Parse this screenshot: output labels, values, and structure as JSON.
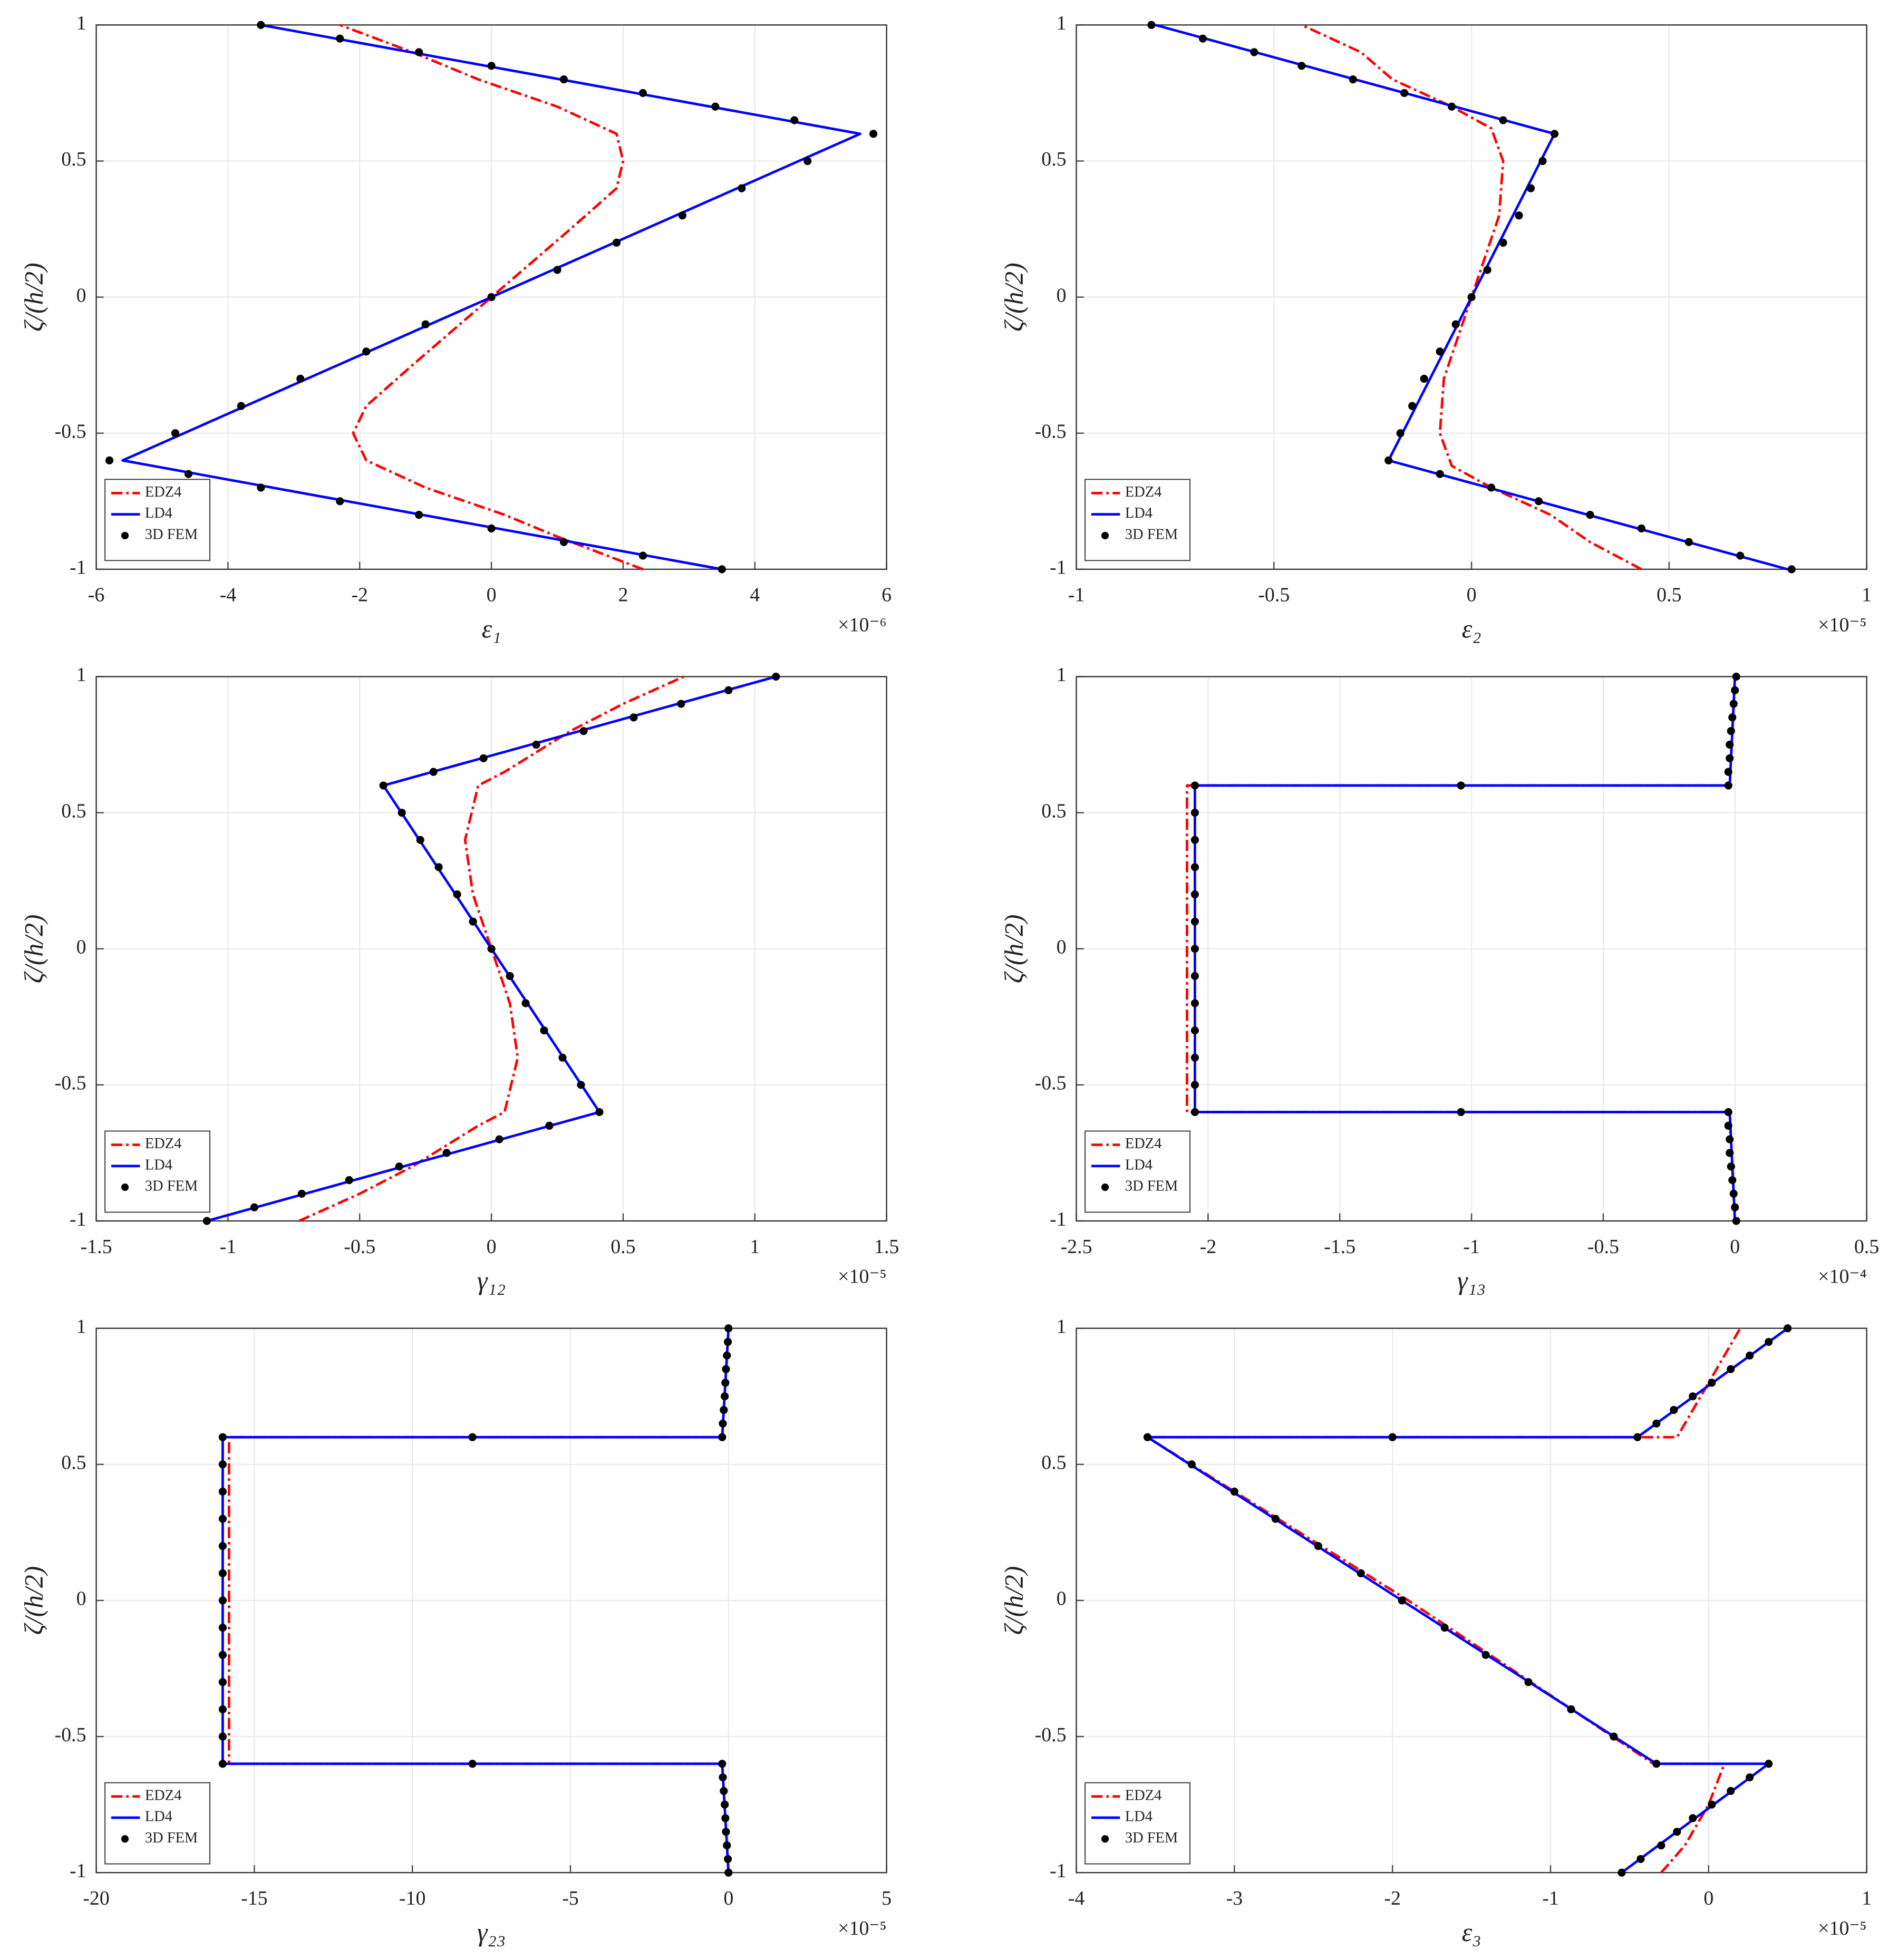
{
  "chart_data": [
    {
      "type": "line",
      "xlabel": "ε₁",
      "ylabel": "ζ/(h/2)",
      "x_multiplier": "×10⁻⁶",
      "xlim": [
        -6,
        6
      ],
      "ylim": [
        -1,
        1
      ],
      "xticks": [
        -6,
        -4,
        -2,
        0,
        2,
        4,
        6
      ],
      "yticks": [
        -1,
        -0.5,
        0,
        0.5,
        1
      ],
      "grid": true,
      "legend": "lower left",
      "series": [
        {
          "name": "EDZ4",
          "color": "#ff0000",
          "style": "dashdot",
          "x": [
            2.3,
            1.0,
            0.2,
            -1,
            -1.9,
            -2.1,
            -1.9,
            -1.2,
            0,
            1.2,
            1.9,
            2.0,
            1.9,
            1,
            -0.2,
            -0.7,
            -1.2,
            -2.3
          ],
          "y": [
            -1,
            -0.88,
            -0.8,
            -0.7,
            -0.6,
            -0.5,
            -0.4,
            -0.25,
            0,
            0.25,
            0.4,
            0.5,
            0.6,
            0.7,
            0.8,
            0.85,
            0.9,
            1
          ]
        },
        {
          "name": "LD4",
          "color": "#0000ff",
          "style": "solid",
          "x": [
            3.5,
            -5.6,
            5.6,
            -3.5
          ],
          "y": [
            -1,
            -0.6,
            0.6,
            1
          ]
        },
        {
          "name": "3D FEM",
          "color": "#000000",
          "style": "markers",
          "x": [
            3.5,
            2.3,
            1.1,
            0,
            -1.1,
            -2.3,
            -3.5,
            -4.6,
            -5.8,
            -4.8,
            -3.8,
            -2.9,
            -1.9,
            -1,
            0,
            1,
            1.9,
            2.9,
            3.8,
            4.8,
            5.8,
            4.6,
            3.4,
            2.3,
            1.1,
            0,
            -1.1,
            -2.3,
            -3.5
          ],
          "y": [
            -1,
            -0.95,
            -0.9,
            -0.85,
            -0.8,
            -0.75,
            -0.7,
            -0.65,
            -0.6,
            -0.5,
            -0.4,
            -0.3,
            -0.2,
            -0.1,
            0,
            0.1,
            0.2,
            0.3,
            0.4,
            0.5,
            0.6,
            0.65,
            0.7,
            0.75,
            0.8,
            0.85,
            0.9,
            0.95,
            1
          ]
        }
      ]
    },
    {
      "type": "line",
      "xlabel": "ε₂",
      "ylabel": "ζ/(h/2)",
      "x_multiplier": "×10⁻⁵",
      "xlim": [
        -1,
        1
      ],
      "ylim": [
        -1,
        1
      ],
      "xticks": [
        -1,
        -0.5,
        0,
        0.5,
        1
      ],
      "yticks": [
        -1,
        -0.5,
        0,
        0.5,
        1
      ],
      "grid": true,
      "legend": "lower left",
      "series": [
        {
          "name": "EDZ4",
          "color": "#ff0000",
          "style": "dashdot",
          "x": [
            0.43,
            0.3,
            0.2,
            0.05,
            -0.05,
            -0.08,
            -0.07,
            0,
            0.07,
            0.08,
            0.05,
            -0.05,
            -0.2,
            -0.28,
            -0.43
          ],
          "y": [
            -1,
            -0.9,
            -0.8,
            -0.7,
            -0.62,
            -0.5,
            -0.3,
            0,
            0.3,
            0.5,
            0.62,
            0.7,
            0.8,
            0.9,
            1
          ]
        },
        {
          "name": "LD4",
          "color": "#0000ff",
          "style": "solid",
          "x": [
            0.8,
            -0.21,
            0.21,
            -0.8
          ],
          "y": [
            -1,
            -0.6,
            0.6,
            1
          ]
        },
        {
          "name": "3D FEM",
          "color": "#000000",
          "style": "markers",
          "x": [
            0.81,
            0.68,
            0.55,
            0.43,
            0.3,
            0.17,
            0.05,
            -0.08,
            -0.21,
            -0.18,
            -0.15,
            -0.12,
            -0.08,
            -0.04,
            0,
            0.04,
            0.08,
            0.12,
            0.15,
            0.18,
            0.21,
            0.08,
            -0.05,
            -0.17,
            -0.3,
            -0.43,
            -0.55,
            -0.68,
            -0.81
          ],
          "y": [
            -1,
            -0.95,
            -0.9,
            -0.85,
            -0.8,
            -0.75,
            -0.7,
            -0.65,
            -0.6,
            -0.5,
            -0.4,
            -0.3,
            -0.2,
            -0.1,
            0,
            0.1,
            0.2,
            0.3,
            0.4,
            0.5,
            0.6,
            0.65,
            0.7,
            0.75,
            0.8,
            0.85,
            0.9,
            0.95,
            1
          ]
        }
      ]
    },
    {
      "type": "line",
      "xlabel": "γ₁₂",
      "ylabel": "ζ/(h/2)",
      "x_multiplier": "×10⁻⁵",
      "xlim": [
        -1.5,
        1.5
      ],
      "ylim": [
        -1,
        1
      ],
      "xticks": [
        -1.5,
        -1,
        -0.5,
        0,
        0.5,
        1,
        1.5
      ],
      "yticks": [
        -1,
        -0.5,
        0,
        0.5,
        1
      ],
      "grid": true,
      "legend": "lower left",
      "series": [
        {
          "name": "EDZ4",
          "color": "#ff0000",
          "style": "dashdot",
          "x": [
            -0.73,
            -0.5,
            -0.3,
            -0.05,
            0.05,
            0.1,
            0.07,
            0,
            -0.07,
            -0.1,
            -0.05,
            0.05,
            0.3,
            0.5,
            0.73
          ],
          "y": [
            -1,
            -0.9,
            -0.8,
            -0.65,
            -0.6,
            -0.4,
            -0.2,
            0,
            0.2,
            0.4,
            0.6,
            0.65,
            0.8,
            0.9,
            1
          ]
        },
        {
          "name": "LD4",
          "color": "#0000ff",
          "style": "solid",
          "x": [
            -1.08,
            0.41,
            -0.41,
            1.08
          ],
          "y": [
            -1,
            -0.6,
            0.6,
            1
          ]
        },
        {
          "name": "3D FEM",
          "color": "#000000",
          "style": "markers",
          "x": [
            -1.08,
            -0.9,
            -0.72,
            -0.54,
            -0.35,
            -0.17,
            0.03,
            0.22,
            0.41,
            0.34,
            0.27,
            0.2,
            0.13,
            0.07,
            0,
            -0.07,
            -0.13,
            -0.2,
            -0.27,
            -0.34,
            -0.41,
            -0.22,
            -0.03,
            0.17,
            0.35,
            0.54,
            0.72,
            0.9,
            1.08
          ],
          "y": [
            -1,
            -0.95,
            -0.9,
            -0.85,
            -0.8,
            -0.75,
            -0.7,
            -0.65,
            -0.6,
            -0.5,
            -0.4,
            -0.3,
            -0.2,
            -0.1,
            0,
            0.1,
            0.2,
            0.3,
            0.4,
            0.5,
            0.6,
            0.65,
            0.7,
            0.75,
            0.8,
            0.85,
            0.9,
            0.95,
            1
          ]
        }
      ]
    },
    {
      "type": "line",
      "xlabel": "γ₁₃",
      "ylabel": "ζ/(h/2)",
      "x_multiplier": "×10⁻⁴",
      "xlim": [
        -2.5,
        0.5
      ],
      "ylim": [
        -1,
        1
      ],
      "xticks": [
        -2.5,
        -2,
        -1.5,
        -1,
        -0.5,
        0,
        0.5
      ],
      "yticks": [
        -1,
        -0.5,
        0,
        0.5,
        1
      ],
      "grid": true,
      "legend": "lower left",
      "series": [
        {
          "name": "EDZ4",
          "color": "#ff0000",
          "style": "dashdot",
          "x": [
            0,
            -0.02,
            -2.08,
            -2.08,
            -0.02,
            0
          ],
          "y": [
            -1,
            -0.6,
            -0.6,
            0.6,
            0.6,
            1
          ]
        },
        {
          "name": "LD4",
          "color": "#0000ff",
          "style": "solid",
          "x": [
            0,
            -0.02,
            -2.05,
            -2.05,
            -0.02,
            0
          ],
          "y": [
            -1,
            -0.6,
            -0.6,
            0.6,
            0.6,
            1
          ]
        },
        {
          "name": "3D FEM",
          "color": "#000000",
          "style": "markers",
          "x": [
            0.005,
            0,
            -0.005,
            -0.01,
            -0.015,
            -0.02,
            -0.02,
            -0.025,
            -0.025,
            -1.04,
            -2.05,
            -2.05,
            -2.05,
            -2.05,
            -2.05,
            -2.05,
            -2.05,
            -2.05,
            -2.05,
            -2.05,
            -2.05,
            -2.05,
            -2.05,
            -1.04,
            -0.025,
            -0.025,
            -0.02,
            -0.02,
            -0.015,
            -0.01,
            -0.005,
            0,
            0.005
          ],
          "y": [
            -1,
            -0.95,
            -0.9,
            -0.85,
            -0.8,
            -0.75,
            -0.7,
            -0.65,
            -0.6,
            -0.6,
            -0.6,
            -0.5,
            -0.4,
            -0.3,
            -0.2,
            -0.1,
            0,
            0.1,
            0.2,
            0.3,
            0.4,
            0.5,
            0.6,
            0.6,
            0.6,
            0.65,
            0.7,
            0.75,
            0.8,
            0.85,
            0.9,
            0.95,
            1
          ]
        }
      ]
    },
    {
      "type": "line",
      "xlabel": "γ₂₃",
      "ylabel": "ζ/(h/2)",
      "x_multiplier": "×10⁻⁵",
      "xlim": [
        -20,
        5
      ],
      "ylim": [
        -1,
        1
      ],
      "xticks": [
        -20,
        -15,
        -10,
        -5,
        0,
        5
      ],
      "yticks": [
        -1,
        -0.5,
        0,
        0.5,
        1
      ],
      "grid": true,
      "legend": "lower left",
      "series": [
        {
          "name": "EDZ4",
          "color": "#ff0000",
          "style": "dashdot",
          "x": [
            0,
            -0.2,
            -15.8,
            -15.8,
            -0.2,
            0
          ],
          "y": [
            -1,
            -0.6,
            -0.6,
            0.6,
            0.6,
            1
          ]
        },
        {
          "name": "LD4",
          "color": "#0000ff",
          "style": "solid",
          "x": [
            0,
            -0.2,
            -16,
            -16,
            -0.2,
            0
          ],
          "y": [
            -1,
            -0.6,
            -0.6,
            0.6,
            0.6,
            1
          ]
        },
        {
          "name": "3D FEM",
          "color": "#000000",
          "style": "markers",
          "x": [
            0,
            -0.02,
            -0.05,
            -0.08,
            -0.1,
            -0.12,
            -0.15,
            -0.18,
            -0.2,
            -8.1,
            -16,
            -16,
            -16,
            -16,
            -16,
            -16,
            -16,
            -16,
            -16,
            -16,
            -16,
            -16,
            -16,
            -8.1,
            -0.2,
            -0.18,
            -0.15,
            -0.12,
            -0.1,
            -0.08,
            -0.05,
            -0.02,
            0
          ],
          "y": [
            -1,
            -0.95,
            -0.9,
            -0.85,
            -0.8,
            -0.75,
            -0.7,
            -0.65,
            -0.6,
            -0.6,
            -0.6,
            -0.5,
            -0.4,
            -0.3,
            -0.2,
            -0.1,
            0,
            0.1,
            0.2,
            0.3,
            0.4,
            0.5,
            0.6,
            0.6,
            0.6,
            0.65,
            0.7,
            0.75,
            0.8,
            0.85,
            0.9,
            0.95,
            1
          ]
        }
      ]
    },
    {
      "type": "line",
      "xlabel": "ε₃",
      "ylabel": "ζ/(h/2)",
      "x_multiplier": "×10⁻⁵",
      "xlim": [
        -4,
        1
      ],
      "ylim": [
        -1,
        1
      ],
      "xticks": [
        -4,
        -3,
        -2,
        -1,
        0,
        1
      ],
      "yticks": [
        -1,
        -0.5,
        0,
        0.5,
        1
      ],
      "grid": true,
      "legend": "lower left",
      "series": [
        {
          "name": "EDZ4",
          "color": "#ff0000",
          "style": "dashdot",
          "x": [
            -0.3,
            -0.15,
            0,
            0.1,
            -0.35,
            -1.9,
            -3.55,
            -0.2,
            -0.1,
            0.05,
            0.2
          ],
          "y": [
            -1,
            -0.9,
            -0.75,
            -0.6,
            -0.6,
            0,
            0.6,
            0.6,
            0.7,
            0.85,
            1
          ]
        },
        {
          "name": "LD4",
          "color": "#0000ff",
          "style": "solid",
          "x": [
            -0.55,
            0.38,
            -0.33,
            -3.55,
            -0.45,
            0.5
          ],
          "y": [
            -1,
            -0.6,
            -0.6,
            0.6,
            0.6,
            1
          ]
        },
        {
          "name": "3D FEM",
          "color": "#000000",
          "style": "markers",
          "x": [
            -0.55,
            -0.43,
            -0.3,
            -0.2,
            -0.1,
            0.02,
            0.14,
            0.26,
            0.38,
            -0.33,
            -0.6,
            -0.87,
            -1.14,
            -1.41,
            -1.67,
            -1.94,
            -2.2,
            -2.47,
            -2.74,
            -3,
            -3.27,
            -3.55,
            -2.0,
            -0.45,
            -0.33,
            -0.22,
            -0.1,
            0.02,
            0.14,
            0.26,
            0.38,
            0.5
          ],
          "y": [
            -1,
            -0.95,
            -0.9,
            -0.85,
            -0.8,
            -0.75,
            -0.7,
            -0.65,
            -0.6,
            -0.6,
            -0.5,
            -0.4,
            -0.3,
            -0.2,
            -0.1,
            0,
            0.1,
            0.2,
            0.3,
            0.4,
            0.5,
            0.6,
            0.6,
            0.6,
            0.65,
            0.7,
            0.75,
            0.8,
            0.85,
            0.9,
            0.95,
            1
          ]
        }
      ]
    }
  ]
}
